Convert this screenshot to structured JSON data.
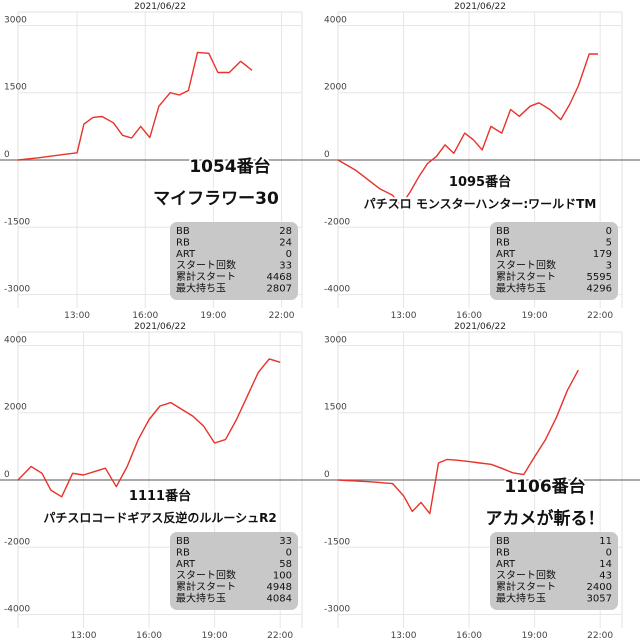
{
  "chart_data": [
    {
      "type": "line",
      "date": "2021/06/22",
      "title_lines": [
        "1054番台",
        "マイフラワー30"
      ],
      "title_size": [
        17,
        17
      ],
      "x_ticks": [
        "13:00",
        "16:00",
        "19:00",
        "22:00"
      ],
      "x_tick_hours": [
        13,
        16,
        19,
        22
      ],
      "y_ticks": [
        3000,
        1500,
        0,
        -1500,
        -3000
      ],
      "ylim": [
        -3300,
        3300
      ],
      "xlim_hours": [
        10.4,
        22.9
      ],
      "line_color": "#e8322a",
      "series": [
        {
          "x": [
            10.4,
            11.3,
            12.5,
            13.0,
            13.3,
            13.7,
            14.1,
            14.6,
            15.0,
            15.4,
            15.8,
            16.2,
            16.6,
            17.1,
            17.5,
            17.9,
            18.3,
            18.8,
            19.2,
            19.7,
            20.2,
            20.7
          ],
          "y": [
            0,
            50,
            130,
            160,
            800,
            950,
            970,
            830,
            550,
            490,
            750,
            500,
            1200,
            1500,
            1450,
            1550,
            2400,
            2380,
            1950,
            1950,
            2200,
            2000
          ]
        }
      ],
      "stats": [
        {
          "label": "BB",
          "value": "28"
        },
        {
          "label": "RB",
          "value": "24"
        },
        {
          "label": "ART",
          "value": "0"
        },
        {
          "label": "スタート回数",
          "value": "33"
        },
        {
          "label": "累計スタート",
          "value": "4468"
        },
        {
          "label": "最大持ち玉",
          "value": "2807"
        }
      ]
    },
    {
      "type": "line",
      "date": "2021/06/22",
      "title_lines": [
        "1095番台",
        "パチスロ モンスターハンター:ワールドTM"
      ],
      "title_size": [
        13,
        12
      ],
      "x_ticks": [
        "13:00",
        "16:00",
        "19:00",
        "22:00"
      ],
      "x_tick_hours": [
        13,
        16,
        19,
        22
      ],
      "y_ticks": [
        4000,
        2000,
        0,
        -2000,
        -4000
      ],
      "ylim": [
        -4400,
        4400
      ],
      "xlim_hours": [
        10.0,
        23.0
      ],
      "line_color": "#e8322a",
      "series": [
        {
          "x": [
            10.0,
            10.8,
            11.4,
            11.9,
            12.5,
            12.9,
            13.3,
            13.7,
            14.1,
            14.5,
            14.9,
            15.3,
            15.8,
            16.2,
            16.6,
            17.0,
            17.5,
            17.9,
            18.3,
            18.8,
            19.2,
            19.7,
            20.2,
            20.6,
            21.0,
            21.5,
            21.9
          ],
          "y": [
            0,
            -300,
            -600,
            -850,
            -1050,
            -1350,
            -950,
            -500,
            -100,
            100,
            450,
            200,
            800,
            600,
            300,
            1000,
            800,
            1500,
            1300,
            1600,
            1700,
            1500,
            1200,
            1650,
            2200,
            3150,
            3150
          ]
        }
      ],
      "stats": [
        {
          "label": "BB",
          "value": "0"
        },
        {
          "label": "RB",
          "value": "5"
        },
        {
          "label": "ART",
          "value": "179"
        },
        {
          "label": "スタート回数",
          "value": "3"
        },
        {
          "label": "累計スタート",
          "value": "5595"
        },
        {
          "label": "最大持ち玉",
          "value": "4296"
        }
      ]
    },
    {
      "type": "line",
      "date": "2021/06/22",
      "title_lines": [
        "1111番台",
        "パチスロコードギアス反逆のルルーシュR2"
      ],
      "title_size": [
        13,
        12
      ],
      "x_ticks": [
        "13:00",
        "16:00",
        "19:00",
        "22:00"
      ],
      "x_tick_hours": [
        13,
        16,
        19,
        22
      ],
      "y_ticks": [
        4000,
        2000,
        0,
        -2000,
        -4000
      ],
      "ylim": [
        -4400,
        4400
      ],
      "xlim_hours": [
        10.0,
        23.0
      ],
      "line_color": "#e8322a",
      "series": [
        {
          "x": [
            10.0,
            10.6,
            11.1,
            11.5,
            12.0,
            12.5,
            13.0,
            13.5,
            14.0,
            14.5,
            15.0,
            15.5,
            16.0,
            16.5,
            17.0,
            17.5,
            18.0,
            18.5,
            19.0,
            19.5,
            20.0,
            20.5,
            21.0,
            21.5,
            22.0
          ],
          "y": [
            0,
            400,
            200,
            -300,
            -500,
            200,
            150,
            250,
            350,
            -200,
            400,
            1200,
            1800,
            2200,
            2300,
            2100,
            1900,
            1600,
            1100,
            1200,
            1800,
            2500,
            3200,
            3600,
            3500
          ]
        }
      ],
      "stats": [
        {
          "label": "BB",
          "value": "33"
        },
        {
          "label": "RB",
          "value": "0"
        },
        {
          "label": "ART",
          "value": "58"
        },
        {
          "label": "スタート回数",
          "value": "100"
        },
        {
          "label": "累計スタート",
          "value": "4948"
        },
        {
          "label": "最大持ち玉",
          "value": "4084"
        }
      ]
    },
    {
      "type": "line",
      "date": "2021/06/22",
      "title_lines": [
        "1106番台",
        "アカメが斬る！"
      ],
      "title_size": [
        17,
        17
      ],
      "x_ticks": [
        "13:00",
        "16:00",
        "19:00",
        "22:00"
      ],
      "x_tick_hours": [
        13,
        16,
        19,
        22
      ],
      "y_ticks": [
        3000,
        1500,
        0,
        -1500,
        -3000
      ],
      "ylim": [
        -3300,
        3300
      ],
      "xlim_hours": [
        10.0,
        23.0
      ],
      "line_color": "#e8322a",
      "series": [
        {
          "x": [
            10.0,
            11.5,
            12.5,
            13.0,
            13.4,
            13.8,
            14.2,
            14.6,
            15.0,
            15.5,
            16.0,
            16.5,
            17.0,
            17.5,
            18.0,
            18.5,
            19.0,
            19.5,
            20.0,
            20.5,
            21.0
          ],
          "y": [
            0,
            -40,
            -80,
            -350,
            -700,
            -500,
            -750,
            380,
            460,
            440,
            410,
            380,
            350,
            260,
            160,
            120,
            520,
            900,
            1400,
            2000,
            2450
          ]
        }
      ],
      "stats": [
        {
          "label": "BB",
          "value": "11"
        },
        {
          "label": "RB",
          "value": "0"
        },
        {
          "label": "ART",
          "value": "14"
        },
        {
          "label": "スタート回数",
          "value": "43"
        },
        {
          "label": "累計スタート",
          "value": "2400"
        },
        {
          "label": "最大持ち玉",
          "value": "3057"
        }
      ]
    }
  ]
}
